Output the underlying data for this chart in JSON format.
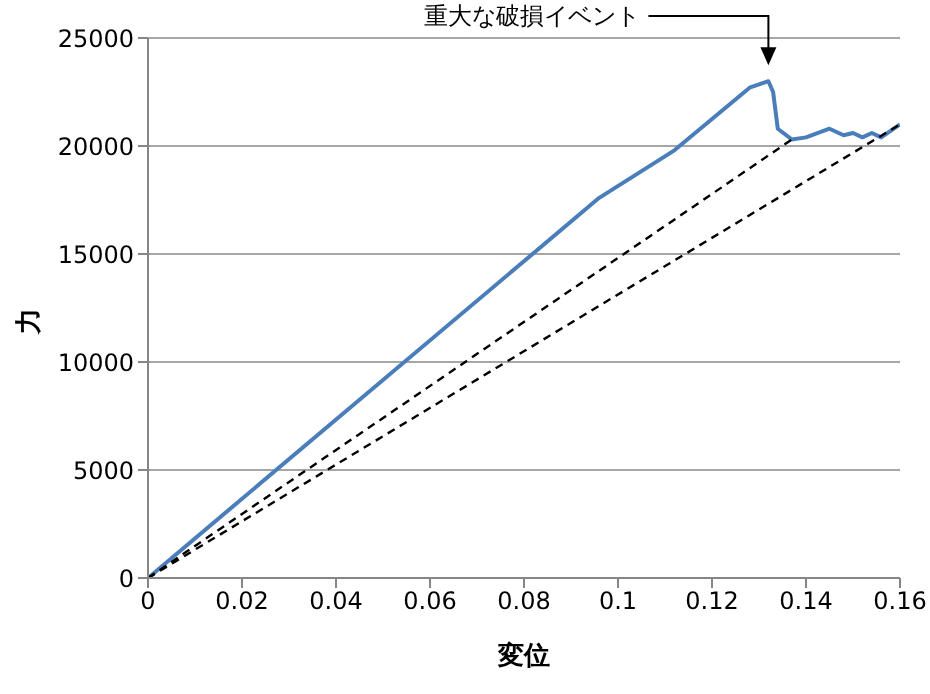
{
  "chart_data": {
    "type": "line",
    "xlabel": "変位",
    "ylabel": "力",
    "xlim": [
      0,
      0.16
    ],
    "xticks": [
      0,
      0.02,
      0.04,
      0.06,
      0.08,
      0.1,
      0.12,
      0.14,
      0.16
    ],
    "ylim": [
      0,
      25000
    ],
    "yticks": [
      0,
      5000,
      10000,
      15000,
      20000,
      25000
    ],
    "grid": "y",
    "marker": "none",
    "annotations": [
      "重大な破損イベント"
    ],
    "series": [
      {
        "color": "#4a7ebb",
        "line_style": "solid",
        "x": [
          0,
          0.096,
          0.112,
          0.128,
          0.132,
          0.133,
          0.134,
          0.137,
          0.14,
          0.145,
          0.148,
          0.15,
          0.152,
          0.154,
          0.156,
          0.158,
          0.16
        ],
        "values": [
          0,
          17600,
          19800,
          22700,
          23000,
          22500,
          20800,
          20300,
          20400,
          20800,
          20500,
          20600,
          20400,
          20600,
          20400,
          20700,
          21000
        ]
      },
      {
        "color": "#000000",
        "line_style": "dashed",
        "x": [
          0,
          0.137
        ],
        "values": [
          0,
          20300
        ]
      },
      {
        "color": "#000000",
        "line_style": "dashed",
        "x": [
          0,
          0.16
        ],
        "values": [
          0,
          21000
        ]
      }
    ]
  }
}
